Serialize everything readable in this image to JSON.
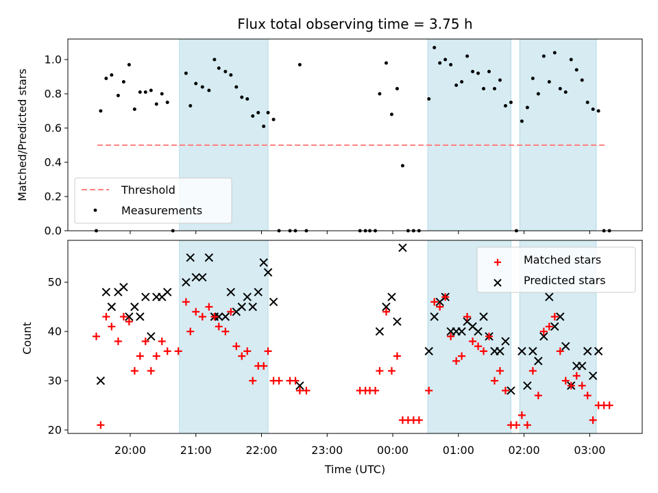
{
  "chart_data": [
    {
      "type": "scatter",
      "title": "Flux total observing time = 3.75 h",
      "xlabel": "",
      "ylabel": "Matched/Predicted stars",
      "ylim": [
        0,
        1.12
      ],
      "xlim_hours": [
        19.05,
        27.8
      ],
      "yticks": [
        "0.0",
        "0.2",
        "0.4",
        "0.6",
        "0.8",
        "1.0"
      ],
      "shaded_intervals": [
        [
          "20:45",
          "22:06"
        ],
        [
          "00:32",
          "01:48"
        ],
        [
          "01:56",
          "03:06"
        ]
      ],
      "legend_position": "lower-left",
      "threshold": {
        "name": "Threshold",
        "value": 0.5,
        "x_start": "19:30",
        "x_end": "03:15",
        "color": "#ff8080"
      },
      "series": [
        {
          "name": "Measurements",
          "color": "#000000",
          "points": [
            [
              "19:29",
              0.0
            ],
            [
              "19:33",
              0.7
            ],
            [
              "19:38",
              0.89
            ],
            [
              "19:43",
              0.91
            ],
            [
              "19:49",
              0.79
            ],
            [
              "19:54",
              0.87
            ],
            [
              "19:59",
              0.97
            ],
            [
              "20:04",
              0.71
            ],
            [
              "20:09",
              0.81
            ],
            [
              "20:14",
              0.81
            ],
            [
              "20:19",
              0.82
            ],
            [
              "20:24",
              0.74
            ],
            [
              "20:29",
              0.8
            ],
            [
              "20:34",
              0.75
            ],
            [
              "20:39",
              0.0
            ],
            [
              "20:51",
              0.92
            ],
            [
              "20:55",
              0.73
            ],
            [
              "21:00",
              0.86
            ],
            [
              "21:06",
              0.84
            ],
            [
              "21:12",
              0.82
            ],
            [
              "21:17",
              1.0
            ],
            [
              "21:21",
              0.95
            ],
            [
              "21:27",
              0.93
            ],
            [
              "21:32",
              0.91
            ],
            [
              "21:37",
              0.84
            ],
            [
              "21:42",
              0.78
            ],
            [
              "21:47",
              0.77
            ],
            [
              "21:52",
              0.67
            ],
            [
              "21:57",
              0.69
            ],
            [
              "22:02",
              0.61
            ],
            [
              "22:06",
              0.69
            ],
            [
              "22:11",
              0.65
            ],
            [
              "22:16",
              0.0
            ],
            [
              "22:26",
              0.0
            ],
            [
              "22:31",
              0.0
            ],
            [
              "22:35",
              0.97
            ],
            [
              "22:41",
              0.0
            ],
            [
              "23:30",
              0.0
            ],
            [
              "23:35",
              0.0
            ],
            [
              "23:39",
              0.0
            ],
            [
              "23:44",
              0.0
            ],
            [
              "23:48",
              0.8
            ],
            [
              "23:54",
              0.98
            ],
            [
              "23:59",
              0.68
            ],
            [
              "00:04",
              0.83
            ],
            [
              "00:09",
              0.38
            ],
            [
              "00:14",
              0.0
            ],
            [
              "00:19",
              0.0
            ],
            [
              "00:24",
              0.0
            ],
            [
              "00:33",
              0.77
            ],
            [
              "00:38",
              1.07
            ],
            [
              "00:43",
              0.98
            ],
            [
              "00:48",
              1.0
            ],
            [
              "00:53",
              0.97
            ],
            [
              "00:58",
              0.85
            ],
            [
              "01:03",
              0.87
            ],
            [
              "01:08",
              1.02
            ],
            [
              "01:13",
              0.93
            ],
            [
              "01:18",
              0.92
            ],
            [
              "01:23",
              0.83
            ],
            [
              "01:28",
              0.93
            ],
            [
              "01:33",
              0.83
            ],
            [
              "01:38",
              0.88
            ],
            [
              "01:43",
              0.73
            ],
            [
              "01:48",
              0.75
            ],
            [
              "01:53",
              0.0
            ],
            [
              "01:58",
              0.64
            ],
            [
              "02:03",
              0.72
            ],
            [
              "02:08",
              0.89
            ],
            [
              "02:13",
              0.8
            ],
            [
              "02:18",
              1.02
            ],
            [
              "02:23",
              0.87
            ],
            [
              "02:28",
              1.04
            ],
            [
              "02:33",
              0.83
            ],
            [
              "02:38",
              0.81
            ],
            [
              "02:43",
              1.0
            ],
            [
              "02:48",
              0.94
            ],
            [
              "02:53",
              0.88
            ],
            [
              "02:58",
              0.75
            ],
            [
              "03:03",
              0.71
            ],
            [
              "03:08",
              0.7
            ],
            [
              "03:13",
              0.0
            ],
            [
              "03:18",
              0.0
            ]
          ]
        }
      ]
    },
    {
      "type": "scatter",
      "title": "",
      "xlabel": "Time (UTC)",
      "ylabel": "Count",
      "ylim": [
        19.3,
        58.5
      ],
      "xlim_hours": [
        19.05,
        27.8
      ],
      "yticks": [
        "20",
        "30",
        "40",
        "50"
      ],
      "xticks": [
        "20:00",
        "21:00",
        "22:00",
        "23:00",
        "00:00",
        "01:00",
        "02:00",
        "03:00"
      ],
      "shaded_intervals": [
        [
          "20:45",
          "22:06"
        ],
        [
          "00:32",
          "01:48"
        ],
        [
          "01:56",
          "03:06"
        ]
      ],
      "legend_position": "upper-right",
      "series": [
        {
          "name": "Matched stars",
          "color": "#ff0000",
          "marker": "plus",
          "points": [
            [
              "19:29",
              39
            ],
            [
              "19:33",
              21
            ],
            [
              "19:38",
              43
            ],
            [
              "19:43",
              41
            ],
            [
              "19:49",
              38
            ],
            [
              "19:54",
              43
            ],
            [
              "19:59",
              42
            ],
            [
              "20:04",
              32
            ],
            [
              "20:09",
              35
            ],
            [
              "20:14",
              38
            ],
            [
              "20:19",
              32
            ],
            [
              "20:24",
              35
            ],
            [
              "20:29",
              38
            ],
            [
              "20:34",
              36
            ],
            [
              "20:44",
              36
            ],
            [
              "20:51",
              46
            ],
            [
              "20:55",
              40
            ],
            [
              "21:00",
              44
            ],
            [
              "21:06",
              43
            ],
            [
              "21:12",
              45
            ],
            [
              "21:17",
              43
            ],
            [
              "21:21",
              41
            ],
            [
              "21:27",
              40
            ],
            [
              "21:32",
              44
            ],
            [
              "21:37",
              37
            ],
            [
              "21:42",
              35
            ],
            [
              "21:47",
              36
            ],
            [
              "21:52",
              30
            ],
            [
              "21:57",
              33
            ],
            [
              "22:02",
              33
            ],
            [
              "22:06",
              36
            ],
            [
              "22:11",
              30
            ],
            [
              "22:16",
              30
            ],
            [
              "22:26",
              30
            ],
            [
              "22:31",
              30
            ],
            [
              "22:35",
              28
            ],
            [
              "22:41",
              28
            ],
            [
              "23:30",
              28
            ],
            [
              "23:35",
              28
            ],
            [
              "23:39",
              28
            ],
            [
              "23:44",
              28
            ],
            [
              "23:48",
              32
            ],
            [
              "23:54",
              44
            ],
            [
              "23:59",
              32
            ],
            [
              "00:04",
              35
            ],
            [
              "00:09",
              22
            ],
            [
              "00:14",
              22
            ],
            [
              "00:19",
              22
            ],
            [
              "00:24",
              22
            ],
            [
              "00:33",
              28
            ],
            [
              "00:38",
              46
            ],
            [
              "00:43",
              45
            ],
            [
              "00:48",
              47
            ],
            [
              "00:53",
              39
            ],
            [
              "00:58",
              34
            ],
            [
              "01:03",
              35
            ],
            [
              "01:08",
              43
            ],
            [
              "01:13",
              38
            ],
            [
              "01:18",
              37
            ],
            [
              "01:23",
              36
            ],
            [
              "01:28",
              39
            ],
            [
              "01:33",
              30
            ],
            [
              "01:38",
              32
            ],
            [
              "01:43",
              28
            ],
            [
              "01:48",
              21
            ],
            [
              "01:53",
              21
            ],
            [
              "01:58",
              23
            ],
            [
              "02:03",
              21
            ],
            [
              "02:08",
              32
            ],
            [
              "02:13",
              27
            ],
            [
              "02:18",
              40
            ],
            [
              "02:23",
              41
            ],
            [
              "02:28",
              43
            ],
            [
              "02:33",
              36
            ],
            [
              "02:38",
              30
            ],
            [
              "02:43",
              29
            ],
            [
              "02:48",
              31
            ],
            [
              "02:53",
              29
            ],
            [
              "02:58",
              27
            ],
            [
              "03:03",
              22
            ],
            [
              "03:08",
              25
            ],
            [
              "03:13",
              25
            ],
            [
              "03:18",
              25
            ]
          ]
        },
        {
          "name": "Predicted stars",
          "color": "#000000",
          "marker": "x",
          "points": [
            [
              "19:33",
              30
            ],
            [
              "19:38",
              48
            ],
            [
              "19:43",
              45
            ],
            [
              "19:49",
              48
            ],
            [
              "19:54",
              49
            ],
            [
              "19:59",
              43
            ],
            [
              "20:04",
              45
            ],
            [
              "20:09",
              43
            ],
            [
              "20:14",
              47
            ],
            [
              "20:19",
              39
            ],
            [
              "20:24",
              47
            ],
            [
              "20:29",
              47
            ],
            [
              "20:34",
              48
            ],
            [
              "20:51",
              50
            ],
            [
              "20:55",
              55
            ],
            [
              "21:00",
              51
            ],
            [
              "21:06",
              51
            ],
            [
              "21:12",
              55
            ],
            [
              "21:17",
              43
            ],
            [
              "21:21",
              43
            ],
            [
              "21:27",
              43
            ],
            [
              "21:32",
              48
            ],
            [
              "21:37",
              44
            ],
            [
              "21:42",
              45
            ],
            [
              "21:47",
              47
            ],
            [
              "21:52",
              45
            ],
            [
              "21:57",
              48
            ],
            [
              "22:02",
              54
            ],
            [
              "22:06",
              52
            ],
            [
              "22:11",
              46
            ],
            [
              "22:35",
              29
            ],
            [
              "23:48",
              40
            ],
            [
              "23:54",
              45
            ],
            [
              "23:59",
              47
            ],
            [
              "00:04",
              42
            ],
            [
              "00:09",
              57
            ],
            [
              "00:33",
              36
            ],
            [
              "00:38",
              43
            ],
            [
              "00:43",
              46
            ],
            [
              "00:48",
              47
            ],
            [
              "00:53",
              40
            ],
            [
              "00:58",
              40
            ],
            [
              "01:03",
              40
            ],
            [
              "01:08",
              42
            ],
            [
              "01:13",
              41
            ],
            [
              "01:18",
              40
            ],
            [
              "01:23",
              43
            ],
            [
              "01:28",
              39
            ],
            [
              "01:33",
              36
            ],
            [
              "01:38",
              36
            ],
            [
              "01:43",
              38
            ],
            [
              "01:48",
              28
            ],
            [
              "01:58",
              36
            ],
            [
              "02:03",
              29
            ],
            [
              "02:08",
              36
            ],
            [
              "02:13",
              34
            ],
            [
              "02:18",
              39
            ],
            [
              "02:23",
              47
            ],
            [
              "02:28",
              41
            ],
            [
              "02:33",
              43
            ],
            [
              "02:38",
              37
            ],
            [
              "02:43",
              29
            ],
            [
              "02:48",
              33
            ],
            [
              "02:53",
              33
            ],
            [
              "02:58",
              36
            ],
            [
              "03:03",
              31
            ],
            [
              "03:08",
              36
            ]
          ]
        }
      ]
    }
  ]
}
